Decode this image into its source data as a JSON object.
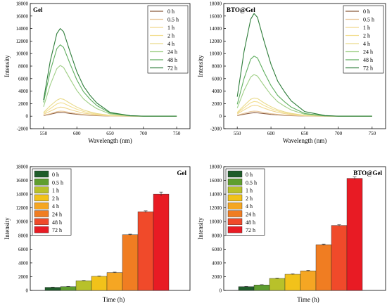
{
  "chart_data": [
    {
      "type": "line",
      "title": "Gel",
      "xlabel": "Wavelength (nm)",
      "ylabel": "Intensity",
      "xlim": [
        530,
        770
      ],
      "ylim": [
        -2000,
        18000
      ],
      "x_ticks": [
        550,
        600,
        650,
        700,
        750
      ],
      "y_ticks": [
        -2000,
        0,
        2000,
        4000,
        6000,
        8000,
        10000,
        12000,
        14000,
        16000,
        18000
      ],
      "legend_position": "top-right",
      "x": [
        550,
        560,
        570,
        575,
        580,
        590,
        600,
        610,
        620,
        630,
        650,
        680,
        700,
        750
      ],
      "series": [
        {
          "name": "0 h",
          "color": "#8b5a3c",
          "values": [
            100,
            300,
            550,
            600,
            580,
            430,
            300,
            200,
            140,
            90,
            30,
            5,
            0,
            0
          ]
        },
        {
          "name": "0.5 h",
          "color": "#e8c79a",
          "values": [
            150,
            400,
            720,
            800,
            770,
            580,
            400,
            270,
            190,
            120,
            40,
            6,
            0,
            0
          ]
        },
        {
          "name": "1 h",
          "color": "#f0d78c",
          "values": [
            300,
            800,
            1300,
            1450,
            1400,
            1050,
            750,
            500,
            350,
            220,
            70,
            10,
            0,
            0
          ]
        },
        {
          "name": "2 h",
          "color": "#f3df92",
          "values": [
            450,
            1200,
            1950,
            2150,
            2080,
            1550,
            1100,
            750,
            520,
            330,
            100,
            15,
            0,
            0
          ]
        },
        {
          "name": "4 h",
          "color": "#e9da8a",
          "values": [
            600,
            1650,
            2550,
            2800,
            2700,
            2050,
            1450,
            980,
            680,
            430,
            130,
            20,
            0,
            0
          ]
        },
        {
          "name": "24 h",
          "color": "#9fcf86",
          "values": [
            1500,
            5000,
            7600,
            8100,
            7800,
            5900,
            4100,
            2750,
            1900,
            1200,
            350,
            50,
            0,
            0
          ]
        },
        {
          "name": "48 h",
          "color": "#5fae5f",
          "values": [
            2200,
            7200,
            10800,
            11400,
            11000,
            8300,
            5800,
            3900,
            2700,
            1700,
            500,
            70,
            0,
            0
          ]
        },
        {
          "name": "72 h",
          "color": "#2e7d3a",
          "values": [
            2600,
            8800,
            13200,
            14000,
            13500,
            10200,
            7100,
            4800,
            3300,
            2100,
            600,
            90,
            0,
            0
          ]
        }
      ]
    },
    {
      "type": "line",
      "title": "BTO@Gel",
      "xlabel": "Wavelength (nm)",
      "ylabel": "Intensity",
      "xlim": [
        530,
        770
      ],
      "ylim": [
        -2000,
        18000
      ],
      "x_ticks": [
        550,
        600,
        650,
        700,
        750
      ],
      "y_ticks": [
        -2000,
        0,
        2000,
        4000,
        6000,
        8000,
        10000,
        12000,
        14000,
        16000,
        18000
      ],
      "legend_position": "top-right",
      "x": [
        550,
        560,
        570,
        575,
        580,
        590,
        600,
        610,
        620,
        630,
        650,
        680,
        700,
        750
      ],
      "series": [
        {
          "name": "0 h",
          "color": "#8b5a3c",
          "values": [
            100,
            300,
            500,
            550,
            530,
            400,
            280,
            190,
            130,
            85,
            28,
            5,
            0,
            0
          ]
        },
        {
          "name": "0.5 h",
          "color": "#e8c79a",
          "values": [
            150,
            450,
            750,
            800,
            780,
            580,
            410,
            280,
            190,
            125,
            40,
            6,
            0,
            0
          ]
        },
        {
          "name": "1 h",
          "color": "#f0d78c",
          "values": [
            350,
            1000,
            1600,
            1750,
            1700,
            1270,
            900,
            610,
            420,
            270,
            85,
            12,
            0,
            0
          ]
        },
        {
          "name": "2 h",
          "color": "#f3df92",
          "values": [
            480,
            1350,
            2150,
            2350,
            2280,
            1700,
            1200,
            820,
            570,
            360,
            110,
            16,
            0,
            0
          ]
        },
        {
          "name": "4 h",
          "color": "#e9da8a",
          "values": [
            600,
            1700,
            2700,
            2900,
            2820,
            2100,
            1500,
            1010,
            700,
            450,
            140,
            20,
            0,
            0
          ]
        },
        {
          "name": "24 h",
          "color": "#9fcf86",
          "values": [
            1300,
            4100,
            6250,
            6650,
            6400,
            4850,
            3400,
            2300,
            1600,
            1000,
            300,
            45,
            0,
            0
          ]
        },
        {
          "name": "48 h",
          "color": "#5fae5f",
          "values": [
            1900,
            6000,
            9100,
            9600,
            9300,
            7000,
            4900,
            3300,
            2300,
            1450,
            430,
            60,
            0,
            0
          ]
        },
        {
          "name": "72 h",
          "color": "#2e7d3a",
          "values": [
            3100,
            10300,
            15500,
            16400,
            15800,
            11900,
            8300,
            5600,
            3900,
            2450,
            730,
            100,
            0,
            0
          ]
        }
      ]
    },
    {
      "type": "bar",
      "title": "Gel",
      "xlabel": "Time (h)",
      "ylabel": "Intensity",
      "ylim": [
        0,
        18000
      ],
      "y_ticks": [
        0,
        2000,
        4000,
        6000,
        8000,
        10000,
        12000,
        14000,
        16000,
        18000
      ],
      "legend_position": "top-left",
      "categories": [
        "0 h",
        "0.5 h",
        "1 h",
        "2 h",
        "4 h",
        "24 h",
        "48 h",
        "72 h"
      ],
      "colors": [
        "#1f5c2a",
        "#5f9e2f",
        "#b8c12a",
        "#f2c21a",
        "#f5a623",
        "#f07d22",
        "#f04a2a",
        "#e81b24"
      ],
      "values": [
        450,
        550,
        1400,
        2050,
        2600,
        8100,
        11450,
        14000
      ],
      "errors": [
        30,
        30,
        50,
        50,
        60,
        80,
        120,
        300
      ]
    },
    {
      "type": "bar",
      "title": "BTO@Gel",
      "xlabel": "Time (h)",
      "ylabel": "Intensity",
      "ylim": [
        0,
        18000
      ],
      "y_ticks": [
        0,
        2000,
        4000,
        6000,
        8000,
        10000,
        12000,
        14000,
        16000,
        18000
      ],
      "legend_position": "top-left",
      "categories": [
        "0 h",
        "0.5 h",
        "1 h",
        "2 h",
        "4 h",
        "24 h",
        "48 h",
        "72 h"
      ],
      "colors": [
        "#1f5c2a",
        "#5f9e2f",
        "#b8c12a",
        "#f2c21a",
        "#f5a623",
        "#f07d22",
        "#f04a2a",
        "#e81b24"
      ],
      "values": [
        550,
        800,
        1750,
        2350,
        2850,
        6650,
        9450,
        16300
      ],
      "errors": [
        30,
        30,
        50,
        60,
        60,
        80,
        100,
        200
      ]
    }
  ]
}
